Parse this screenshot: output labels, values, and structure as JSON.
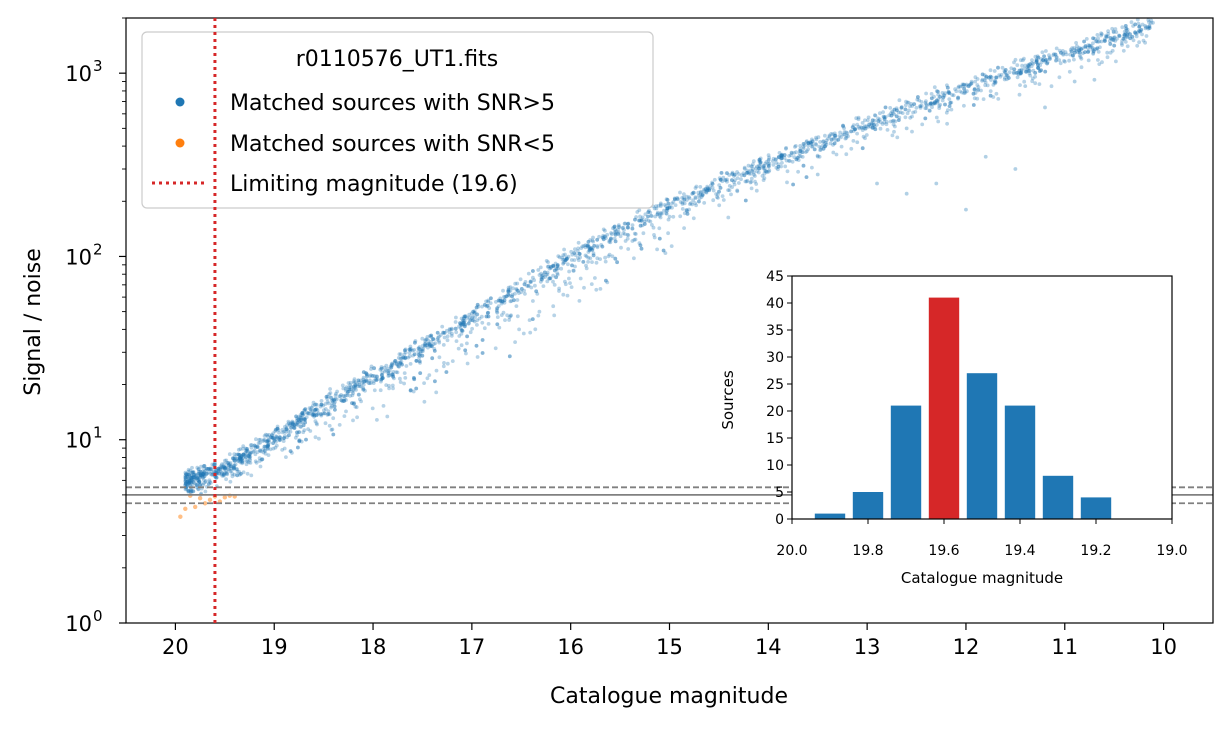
{
  "chart_data": [
    {
      "type": "scatter",
      "xlabel": "Catalogue magnitude",
      "ylabel": "Signal / noise",
      "yscale": "log",
      "x_inverted": true,
      "xlim": [
        20.5,
        9.5
      ],
      "ylim": [
        1,
        2000
      ],
      "x_ticks": [
        "20",
        "19",
        "18",
        "17",
        "16",
        "15",
        "14",
        "13",
        "12",
        "11",
        "10"
      ],
      "y_ticks": [
        {
          "base": "10",
          "exp": "0"
        },
        {
          "base": "10",
          "exp": "1"
        },
        {
          "base": "10",
          "exp": "2"
        },
        {
          "base": "10",
          "exp": "3"
        }
      ],
      "legend": {
        "title": "r0110576_UT1.fits",
        "position": "top-left",
        "entries": [
          {
            "label": "Matched sources with SNR>5",
            "color": "#1f77b4",
            "marker": "dot"
          },
          {
            "label": "Matched sources with SNR<5",
            "color": "#ff7f0e",
            "marker": "dot"
          },
          {
            "label": "Limiting magnitude (19.6)",
            "color": "#d62728",
            "marker": "dotted-line"
          }
        ]
      },
      "series": [
        {
          "name": "Matched sources with SNR>5",
          "color": "#1f77b4",
          "trend": [
            [
              19.9,
              6.0
            ],
            [
              19.5,
              7.0
            ],
            [
              19.0,
              10.5
            ],
            [
              18.5,
              15.5
            ],
            [
              18.0,
              22
            ],
            [
              17.5,
              32
            ],
            [
              17.0,
              46
            ],
            [
              16.5,
              68
            ],
            [
              16.0,
              100
            ],
            [
              15.5,
              140
            ],
            [
              15.0,
              190
            ],
            [
              14.5,
              250
            ],
            [
              14.0,
              330
            ],
            [
              13.5,
              420
            ],
            [
              13.0,
              530
            ],
            [
              12.5,
              670
            ],
            [
              12.0,
              840
            ],
            [
              11.5,
              1050
            ],
            [
              11.0,
              1300
            ],
            [
              10.5,
              1600
            ],
            [
              10.1,
              1900
            ]
          ],
          "outliers": [
            [
              12.9,
              250
            ],
            [
              12.6,
              220
            ],
            [
              12.3,
              250
            ],
            [
              12.0,
              180
            ],
            [
              11.8,
              350
            ],
            [
              11.5,
              300
            ],
            [
              13.5,
              280
            ],
            [
              14.0,
              320
            ],
            [
              12.6,
              500
            ],
            [
              11.2,
              650
            ],
            [
              10.9,
              900
            ],
            [
              10.7,
              920
            ],
            [
              11.4,
              850
            ],
            [
              13.1,
              420
            ]
          ]
        },
        {
          "name": "Matched sources with SNR<5",
          "color": "#ff7f0e",
          "points": [
            [
              19.95,
              3.8
            ],
            [
              19.8,
              4.3
            ],
            [
              19.7,
              4.5
            ],
            [
              19.75,
              4.8
            ],
            [
              19.65,
              4.7
            ],
            [
              19.6,
              4.9
            ],
            [
              19.5,
              4.85
            ],
            [
              19.4,
              4.9
            ],
            [
              19.55,
              4.6
            ],
            [
              19.85,
              4.95
            ],
            [
              19.9,
              4.2
            ],
            [
              19.45,
              4.95
            ]
          ]
        }
      ],
      "reference_lines": {
        "vertical": {
          "x": 19.6,
          "color": "#d62728",
          "style": "dotted"
        },
        "horizontal": [
          {
            "y": 5.0,
            "color": "#808080",
            "style": "solid"
          },
          {
            "y": 5.5,
            "color": "#808080",
            "style": "dashed"
          },
          {
            "y": 4.5,
            "color": "#808080",
            "style": "dashed"
          }
        ]
      }
    },
    {
      "type": "bar",
      "xlabel": "Catalogue magnitude",
      "ylabel": "Sources",
      "x_inverted": true,
      "xlim": [
        20.0,
        19.0
      ],
      "ylim": [
        0,
        45
      ],
      "x_ticks": [
        "20.0",
        "19.8",
        "19.6",
        "19.4",
        "19.2",
        "19.0"
      ],
      "y_ticks": [
        "0",
        "5",
        "10",
        "15",
        "20",
        "25",
        "30",
        "35",
        "40",
        "45"
      ],
      "bin_width": 0.1,
      "categories": [
        19.9,
        19.8,
        19.7,
        19.6,
        19.5,
        19.4,
        19.3,
        19.2
      ],
      "values": [
        1,
        5,
        21,
        41,
        27,
        21,
        8,
        4
      ],
      "colors": [
        "#1f77b4",
        "#1f77b4",
        "#1f77b4",
        "#d62728",
        "#1f77b4",
        "#1f77b4",
        "#1f77b4",
        "#1f77b4"
      ]
    }
  ]
}
